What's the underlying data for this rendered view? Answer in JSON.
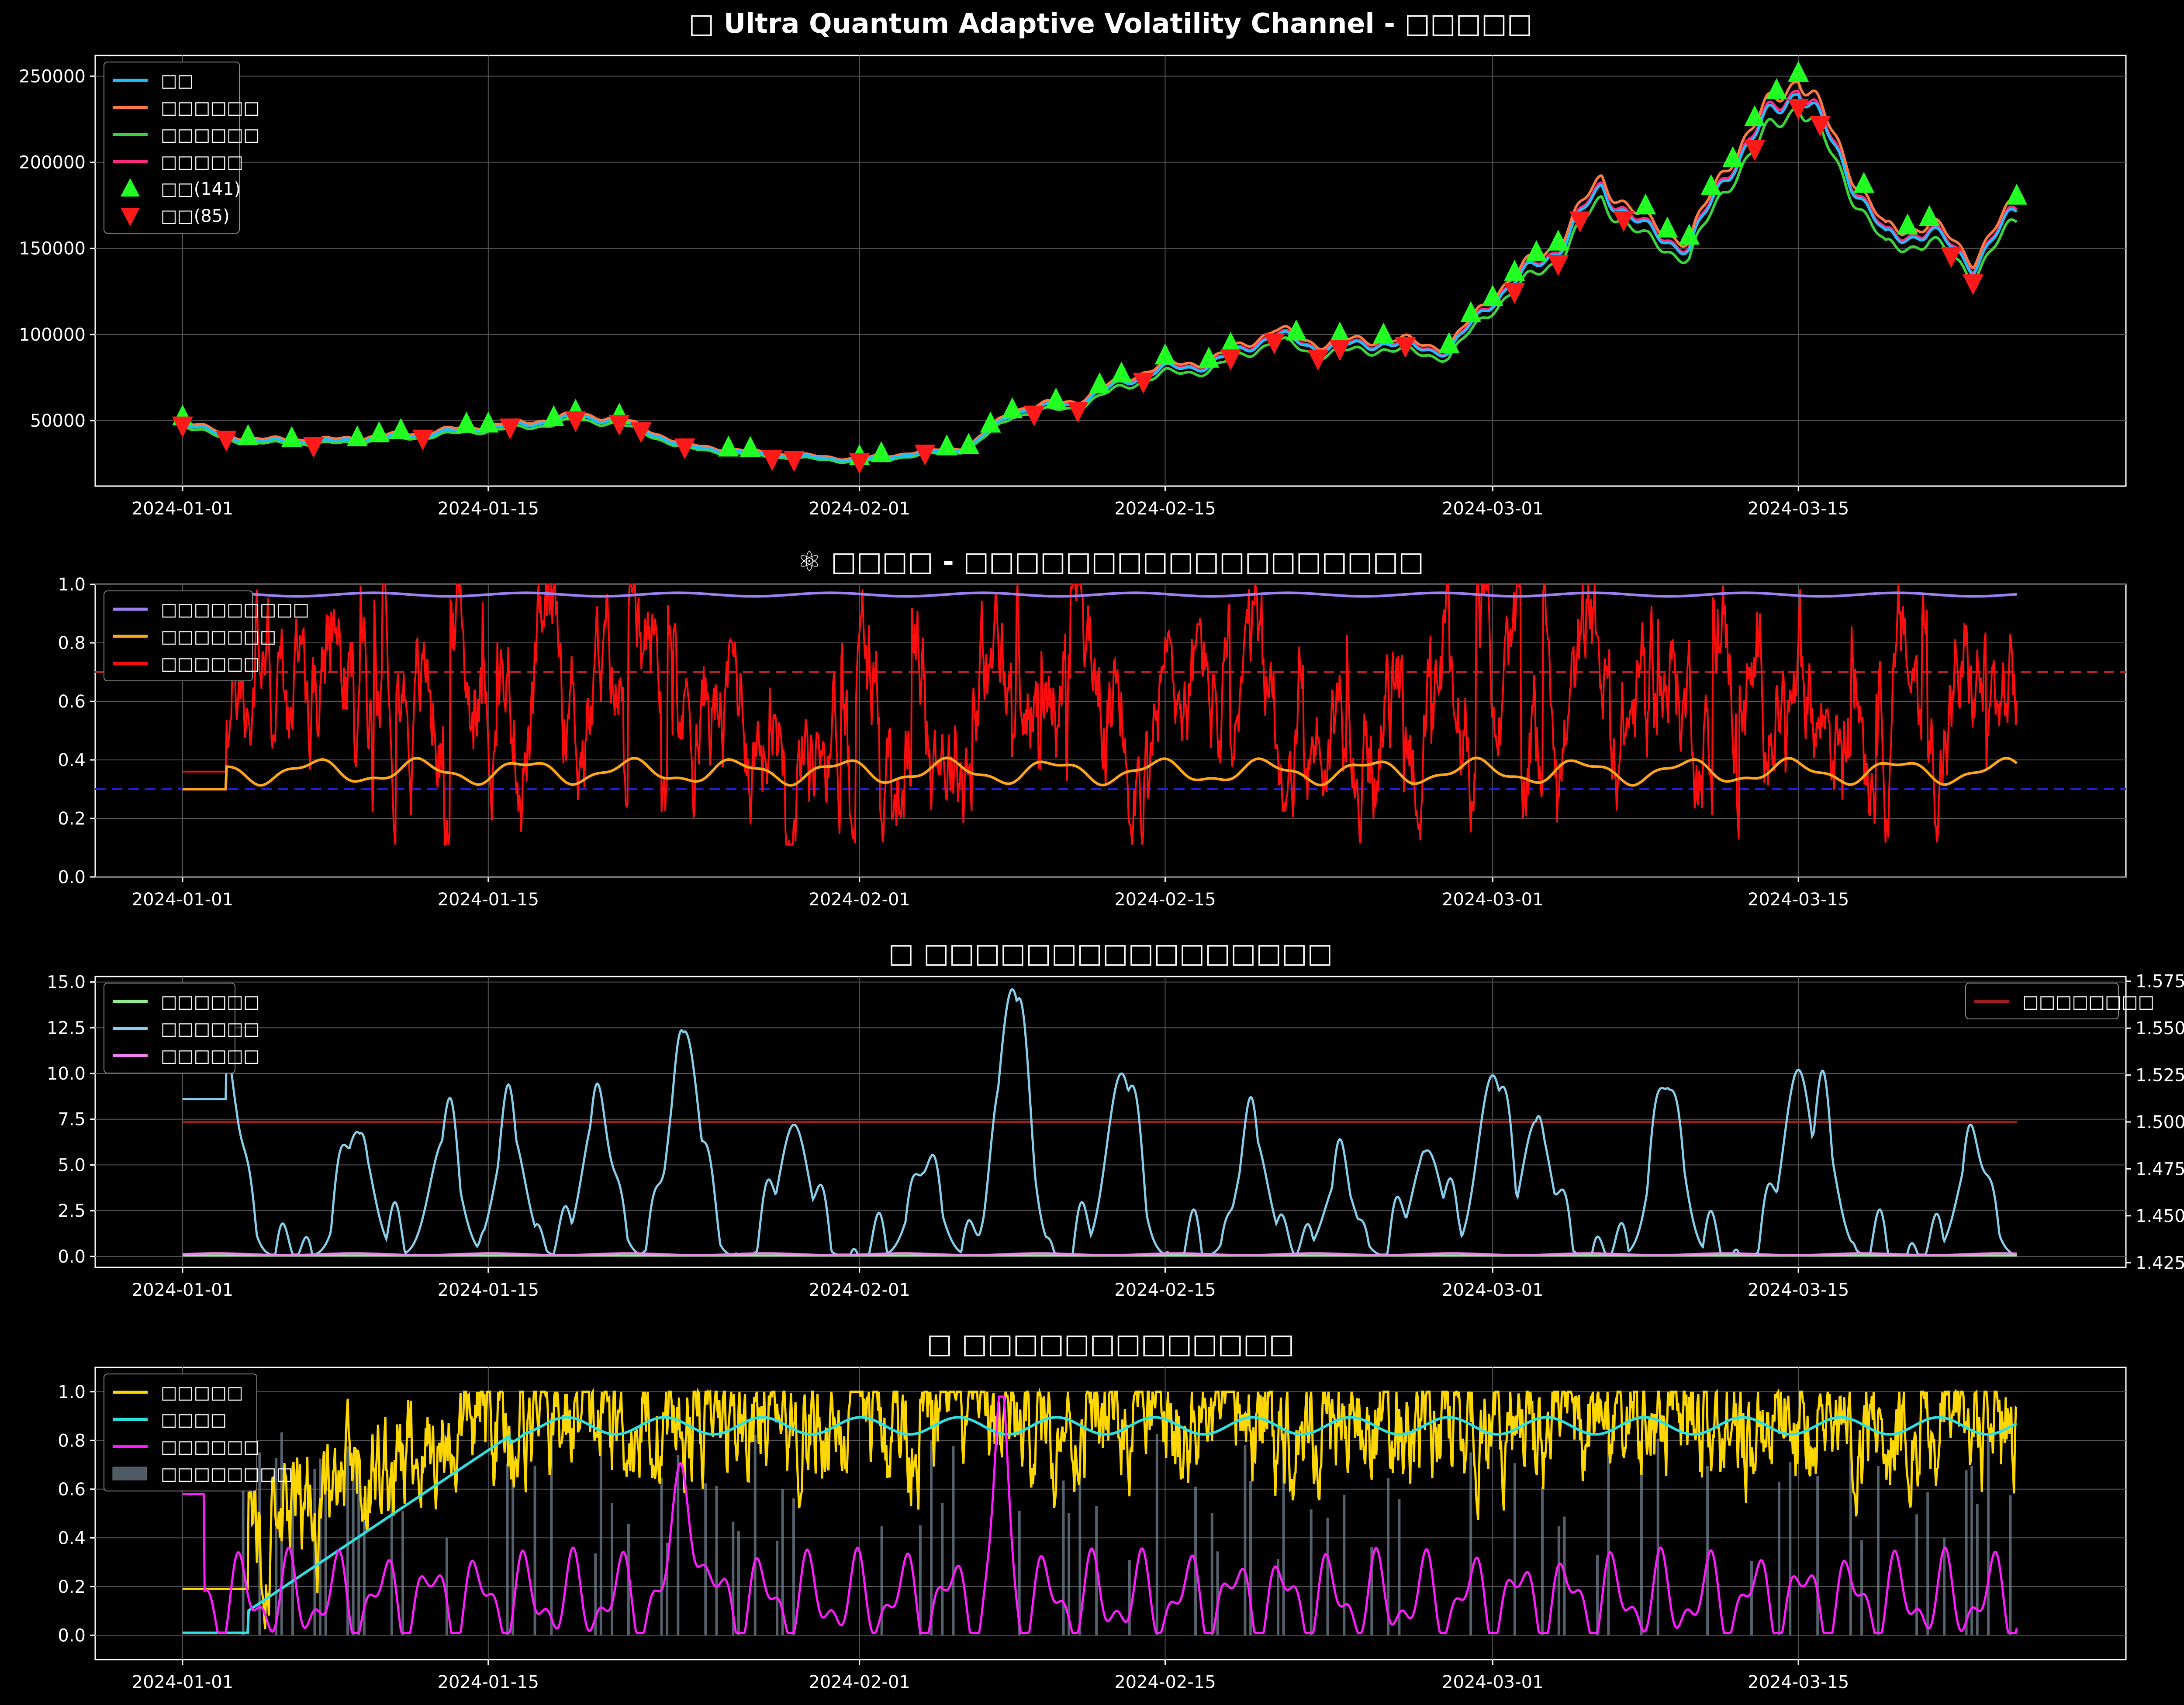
{
  "chart_data": [
    {
      "type": "line",
      "title": "□ Ultra Quantum Adaptive Volatility Channel - □□□□□",
      "x_range": [
        "2023-12-28",
        "2024-03-30"
      ],
      "x_ticks": [
        "2024-01-01",
        "2024-01-15",
        "2024-02-01",
        "2024-02-15",
        "2024-03-01",
        "2024-03-15"
      ],
      "ylim": [
        12000,
        262000
      ],
      "yticks": [
        50000,
        100000,
        150000,
        200000,
        250000
      ],
      "grid": true,
      "legend": "top-left",
      "anchors_x": [
        "2024-01-01",
        "2024-01-03",
        "2024-01-05",
        "2024-01-08",
        "2024-01-12",
        "2024-01-15",
        "2024-01-17",
        "2024-01-19",
        "2024-01-21",
        "2024-01-24",
        "2024-01-28",
        "2024-02-01",
        "2024-02-03",
        "2024-02-06",
        "2024-02-08",
        "2024-02-11",
        "2024-02-13",
        "2024-02-15",
        "2024-02-17",
        "2024-02-20",
        "2024-02-22",
        "2024-02-25",
        "2024-02-28",
        "2024-03-01",
        "2024-03-04",
        "2024-03-06",
        "2024-03-08",
        "2024-03-10",
        "2024-03-12",
        "2024-03-14",
        "2024-03-15",
        "2024-03-17",
        "2024-03-19",
        "2024-03-21",
        "2024-03-23",
        "2024-03-25"
      ],
      "anchors_y": [
        50000,
        40000,
        38000,
        38000,
        42000,
        46000,
        48000,
        52000,
        50000,
        35000,
        30000,
        27000,
        30000,
        34000,
        55000,
        60000,
        72000,
        80000,
        82000,
        100000,
        92000,
        95000,
        90000,
        120000,
        150000,
        185000,
        160000,
        150000,
        200000,
        230000,
        245000,
        200000,
        155000,
        160000,
        140000,
        172000
      ],
      "series": [
        {
          "name": "□□",
          "color": "#1fbfff",
          "offset": 0
        },
        {
          "name": "□□□□□□",
          "color": "#ff7a40",
          "offset": 0.03
        },
        {
          "name": "□□□□□□",
          "color": "#3cd43c",
          "offset": -0.035
        },
        {
          "name": "□□□□□",
          "color": "#ff2a80",
          "offset": 0.008
        }
      ],
      "markers": [
        {
          "name": "□□(141)",
          "color": "#22ff22",
          "shape": "triangle-up"
        },
        {
          "name": "□□(85)",
          "color": "#ff1a1a",
          "shape": "triangle-down"
        }
      ],
      "buy_dates": [
        "2024-01-01",
        "2024-01-04",
        "2024-01-06",
        "2024-01-09",
        "2024-01-10",
        "2024-01-11",
        "2024-01-14",
        "2024-01-15",
        "2024-01-18",
        "2024-01-19",
        "2024-01-21",
        "2024-01-26",
        "2024-01-27",
        "2024-02-01",
        "2024-02-02",
        "2024-02-05",
        "2024-02-06",
        "2024-02-07",
        "2024-02-08",
        "2024-02-10",
        "2024-02-12",
        "2024-02-13",
        "2024-02-15",
        "2024-02-17",
        "2024-02-18",
        "2024-02-21",
        "2024-02-23",
        "2024-02-25",
        "2024-02-28",
        "2024-02-29",
        "2024-03-01",
        "2024-03-02",
        "2024-03-03",
        "2024-03-04",
        "2024-03-08",
        "2024-03-09",
        "2024-03-10",
        "2024-03-11",
        "2024-03-12",
        "2024-03-13",
        "2024-03-14",
        "2024-03-15",
        "2024-03-18",
        "2024-03-20",
        "2024-03-21",
        "2024-03-25"
      ],
      "sell_dates": [
        "2024-01-01",
        "2024-01-03",
        "2024-01-07",
        "2024-01-12",
        "2024-01-16",
        "2024-01-19",
        "2024-01-21",
        "2024-01-22",
        "2024-01-24",
        "2024-01-28",
        "2024-01-29",
        "2024-02-01",
        "2024-02-04",
        "2024-02-09",
        "2024-02-11",
        "2024-02-14",
        "2024-02-18",
        "2024-02-20",
        "2024-02-22",
        "2024-02-23",
        "2024-02-26",
        "2024-03-02",
        "2024-03-04",
        "2024-03-05",
        "2024-03-07",
        "2024-03-13",
        "2024-03-15",
        "2024-03-16",
        "2024-03-22",
        "2024-03-23"
      ]
    },
    {
      "type": "line",
      "title": "⚛ □□□□ - □□□□□□□□□□□□□□□□□□",
      "ylim": [
        0,
        1.0
      ],
      "yticks": [
        0.0,
        0.2,
        0.4,
        0.6,
        0.8,
        1.0
      ],
      "grid": true,
      "legend": "top-left",
      "hlines": [
        {
          "value": 0.7,
          "color": "#b32222",
          "style": "dashed"
        },
        {
          "value": 0.3,
          "color": "#1f1fd9",
          "style": "dashed"
        }
      ],
      "series": [
        {
          "name": "□□□□□□□□□",
          "color": "#9d80f0",
          "level": 0.975,
          "amplitude": 0.006,
          "kind": "smooth"
        },
        {
          "name": "□□□□□□□",
          "color": "#ffa51a",
          "level": 0.36,
          "amplitude": 0.035,
          "kind": "smooth",
          "start": 0.3
        },
        {
          "name": "□□□□□□",
          "color": "#ff0d0d",
          "level": 0.55,
          "amplitude": 0.45,
          "kind": "noisy",
          "start": 0.36
        }
      ]
    },
    {
      "type": "line",
      "title": "□ □□□□□□□□□□□□□□□□",
      "ylim": [
        -0.6,
        15.3
      ],
      "yticks": [
        0.0,
        2.5,
        5.0,
        7.5,
        10.0,
        12.5,
        15.0
      ],
      "y2lim": [
        1.4225,
        1.5775
      ],
      "y2ticks": [
        1.425,
        1.45,
        1.475,
        1.5,
        1.525,
        1.55,
        1.575
      ],
      "y2label": "□□□□□□□□",
      "grid": true,
      "legend": "top-left",
      "legend2": "top-right",
      "peaks_x": [
        "2024-01-01",
        "2024-01-03",
        "2024-01-09",
        "2024-01-13",
        "2024-01-16",
        "2024-01-20",
        "2024-01-24",
        "2024-01-29",
        "2024-02-04",
        "2024-02-08",
        "2024-02-13",
        "2024-02-19",
        "2024-02-23",
        "2024-02-27",
        "2024-03-01",
        "2024-03-03",
        "2024-03-09",
        "2024-03-15",
        "2024-03-16",
        "2024-03-23"
      ],
      "peaks_y": [
        8.6,
        10.2,
        6.8,
        6.4,
        6.9,
        8.0,
        12.3,
        7.2,
        4.6,
        14.6,
        10.0,
        6.7,
        4.3,
        5.8,
        9.9,
        7.4,
        9.2,
        10.2,
        7.5,
        5.9
      ],
      "series": [
        {
          "name": "□□□□□□",
          "color": "#90ee90",
          "level": 0.05
        },
        {
          "name": "□□□□□□",
          "color": "#87ceeb",
          "level": null
        },
        {
          "name": "□□□□□□",
          "color": "#ee82ee",
          "level": 0.12
        }
      ],
      "series2": [
        {
          "name": "□□□□□□□□",
          "color": "#a01e1e",
          "level": 1.5
        }
      ]
    },
    {
      "type": "line",
      "title": "□ □□□□□□□□□□□□□",
      "ylim": [
        -0.1,
        1.1
      ],
      "yticks": [
        0.0,
        0.2,
        0.4,
        0.6,
        0.8,
        1.0
      ],
      "grid": true,
      "legend": "top-left",
      "series": [
        {
          "name": "□□□□□",
          "color": "#ffd700",
          "kind": "noisy",
          "start": 0.19
        },
        {
          "name": "□□□□",
          "color": "#2ee0e0",
          "kind": "smooth",
          "start": 0.01
        },
        {
          "name": "□□□□□□",
          "color": "#ff1aff",
          "kind": "bumpy",
          "start": 0.58
        },
        {
          "name": "□□□□□□□□",
          "color": "#708090",
          "kind": "bars"
        }
      ]
    }
  ]
}
